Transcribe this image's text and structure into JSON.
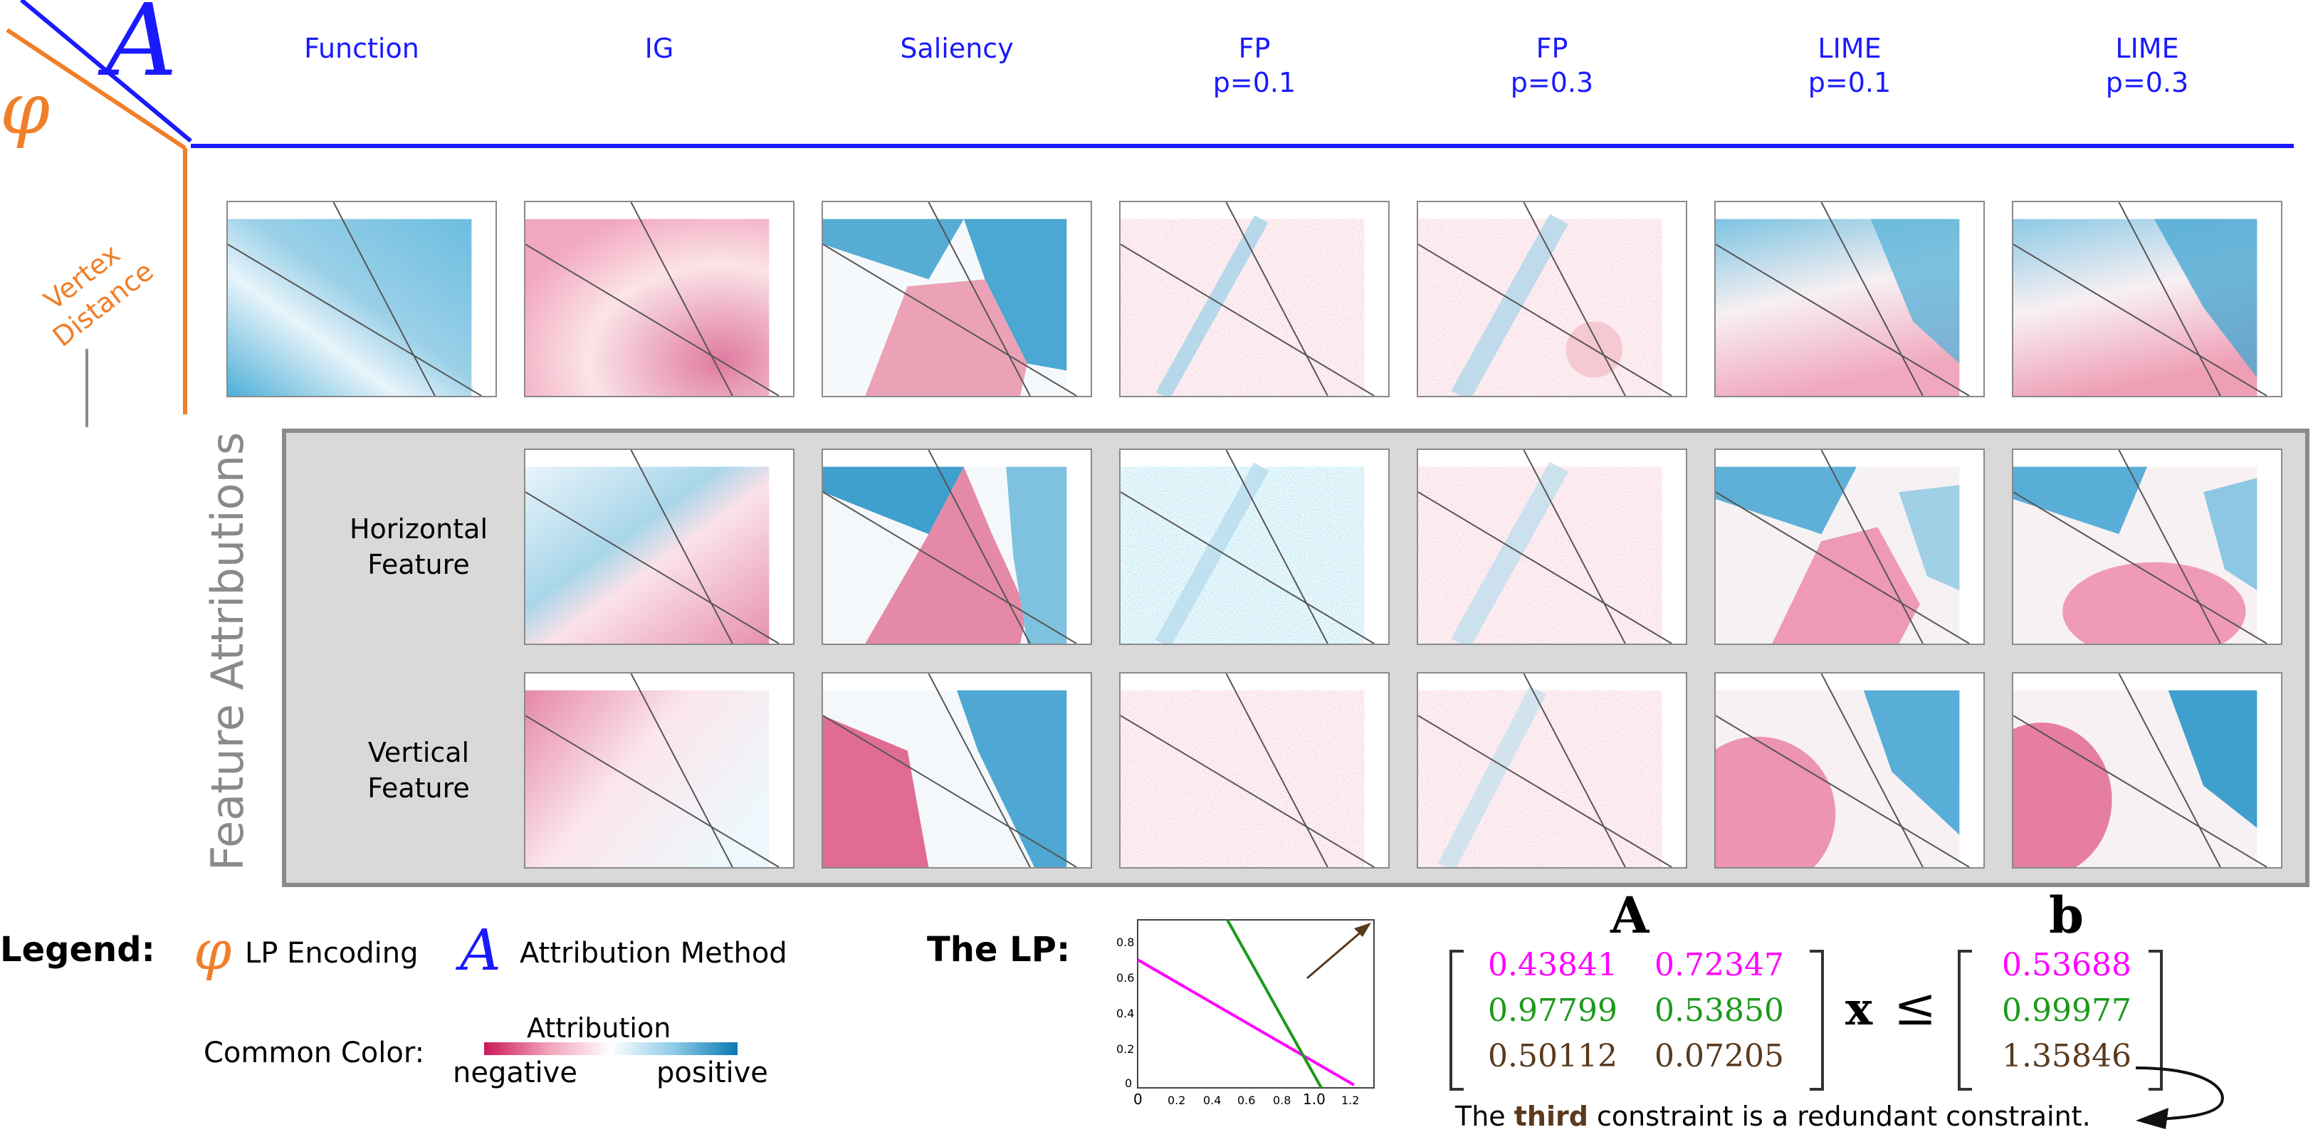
{
  "header": {
    "encoding_symbol": "φ",
    "method_symbol": "A",
    "columns": [
      {
        "label": "Function"
      },
      {
        "label": "IG"
      },
      {
        "label": "Saliency"
      },
      {
        "label": "FP\np=0.1"
      },
      {
        "label": "FP\np=0.3"
      },
      {
        "label": "LIME\np=0.1"
      },
      {
        "label": "LIME\np=0.3"
      }
    ]
  },
  "axis": {
    "vertex_distance": "Vertex\nDistance",
    "feature_attributions": "Feature Attributions"
  },
  "rows": {
    "horizontal": "Horizontal\nFeature",
    "vertical": "Vertical\nFeature"
  },
  "legend": {
    "title": "Legend:",
    "encoding_label": "LP Encoding",
    "method_label": "Attribution Method",
    "common_color": "Common Color:",
    "colorbar_title": "Attribution",
    "negative": "negative",
    "positive": "positive",
    "colors": {
      "negative": "#d6336c",
      "neutral": "#ffffff",
      "positive": "#1a8fc4"
    }
  },
  "lp": {
    "title": "The LP:",
    "plot_y_ticks": [
      "0.8",
      "0.6",
      "0.4",
      "0.2",
      "0"
    ],
    "plot_x_ticks": [
      "0",
      "0.2",
      "0.4",
      "0.6",
      "0.8",
      "1.0",
      "1.2"
    ],
    "matrix_label": "A",
    "vector_label": "b",
    "x_symbol": "x",
    "leq": "≤",
    "matrix": [
      [
        "0.43841",
        "0.72347"
      ],
      [
        "0.97799",
        "0.53850"
      ],
      [
        "0.50112",
        "0.07205"
      ]
    ],
    "b": [
      "0.53688",
      "0.99977",
      "1.35846"
    ],
    "row_colors": [
      "#ff00ff",
      "#1a9a1a",
      "#5a3a1e"
    ],
    "note_prefix": "The ",
    "note_bold": "third",
    "note_suffix": " constraint is a redundant constraint."
  }
}
